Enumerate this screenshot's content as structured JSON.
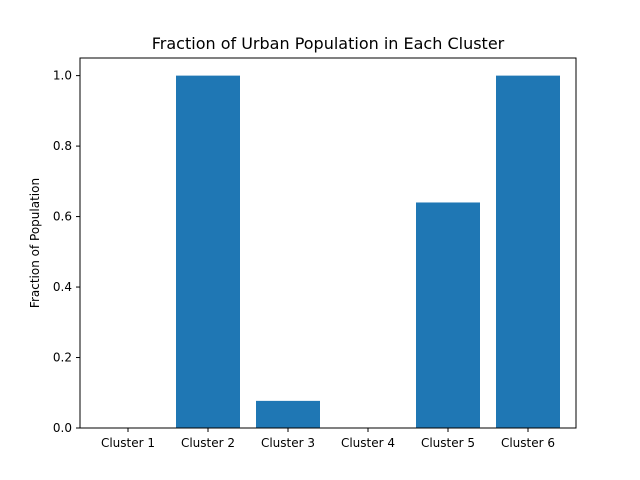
{
  "chart_data": {
    "type": "bar",
    "title": "Fraction of Urban Population in Each Cluster",
    "xlabel": "",
    "ylabel": "Fraction of Population",
    "categories": [
      "Cluster 1",
      "Cluster 2",
      "Cluster 3",
      "Cluster 4",
      "Cluster 5",
      "Cluster 6"
    ],
    "values": [
      0.0,
      1.0,
      0.077,
      0.0,
      0.64,
      1.0
    ],
    "ylim": [
      0,
      1.05
    ],
    "yticks": [
      0.0,
      0.2,
      0.4,
      0.6,
      0.8,
      1.0
    ],
    "ytick_labels": [
      "0.0",
      "0.2",
      "0.4",
      "0.6",
      "0.8",
      "1.0"
    ],
    "bar_color": "#1f77b4",
    "grid": false,
    "legend": "none"
  }
}
